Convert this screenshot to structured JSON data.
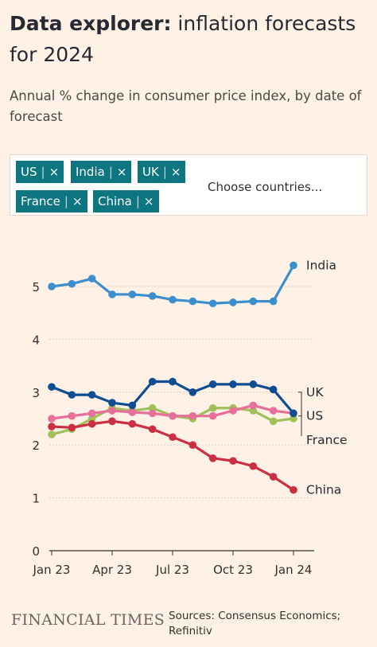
{
  "header": {
    "title_bold": "Data explorer:",
    "title_rest": " inflation forecasts for 2024",
    "subtitle": "Annual % change in consumer price index, by date of forecast"
  },
  "selector": {
    "chips": [
      "US",
      "India",
      "UK",
      "France",
      "China"
    ],
    "chip_separator": "|",
    "chip_remove": "×",
    "placeholder": "Choose countries..."
  },
  "footer": {
    "logo": "FINANCIAL TIMES",
    "source": "Sources: Consensus Economics; Refinitiv"
  },
  "colors": {
    "background": "#fff1e5",
    "chip": "#0d7680",
    "India": "#3a8fcc",
    "UK": "#0f4d92",
    "US": "#e86f9a",
    "France": "#a0c05a",
    "China": "#cc2f41"
  },
  "chart_data": {
    "type": "line",
    "title": "",
    "xlabel": "",
    "ylabel": "",
    "ylim": [
      0,
      5.5
    ],
    "yticks": [
      0,
      1,
      2,
      3,
      4,
      5
    ],
    "grid": true,
    "legend_placement": "right end labels",
    "x": [
      "2023-01",
      "2023-02",
      "2023-03",
      "2023-04",
      "2023-05",
      "2023-06",
      "2023-07",
      "2023-08",
      "2023-09",
      "2023-10",
      "2023-11",
      "2023-12",
      "2024-01"
    ],
    "x_tick_labels": [
      {
        "month": "2023-01",
        "label": "Jan 23"
      },
      {
        "month": "2023-04",
        "label": "Apr 23"
      },
      {
        "month": "2023-07",
        "label": "Jul 23"
      },
      {
        "month": "2023-10",
        "label": "Oct 23"
      },
      {
        "month": "2024-01",
        "label": "Jan 24"
      }
    ],
    "series": [
      {
        "name": "India",
        "values": [
          5.0,
          5.05,
          5.15,
          4.85,
          4.85,
          4.82,
          4.75,
          4.72,
          4.68,
          4.7,
          4.72,
          4.72,
          5.4
        ]
      },
      {
        "name": "UK",
        "values": [
          3.1,
          2.95,
          2.95,
          2.8,
          2.75,
          3.2,
          3.2,
          3.0,
          3.15,
          3.15,
          3.15,
          3.05,
          2.6
        ]
      },
      {
        "name": "US",
        "values": [
          2.5,
          2.55,
          2.6,
          2.65,
          2.62,
          2.6,
          2.55,
          2.55,
          2.55,
          2.65,
          2.75,
          2.65,
          2.6
        ]
      },
      {
        "name": "France",
        "values": [
          2.2,
          2.3,
          2.5,
          2.7,
          2.65,
          2.7,
          2.55,
          2.5,
          2.7,
          2.7,
          2.65,
          2.45,
          2.5
        ]
      },
      {
        "name": "China",
        "values": [
          2.35,
          2.33,
          2.4,
          2.45,
          2.4,
          2.3,
          2.15,
          2.0,
          1.75,
          1.7,
          1.6,
          1.4,
          1.15
        ]
      }
    ]
  }
}
